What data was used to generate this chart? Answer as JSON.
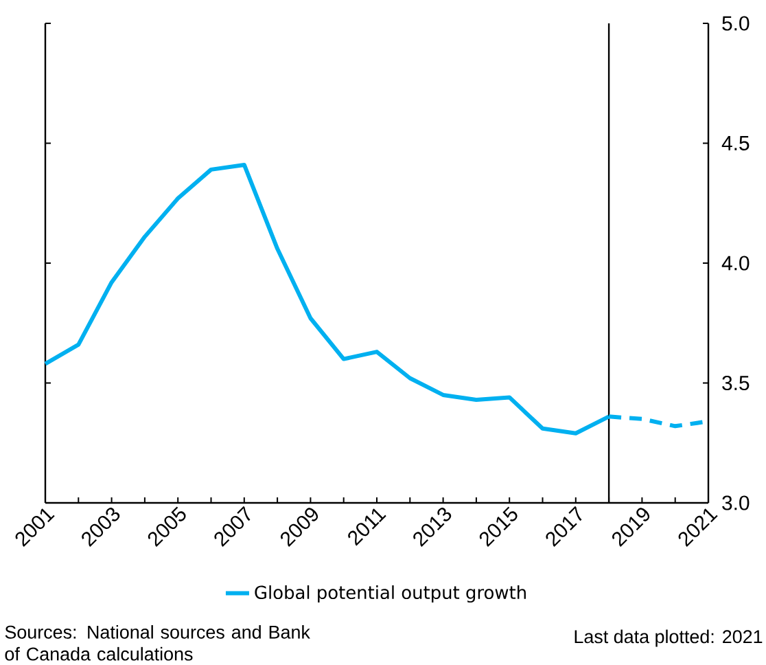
{
  "chart_data": {
    "type": "line",
    "series": [
      {
        "name": "Global potential output growth",
        "color": "#00b0f0",
        "line_style": "solid",
        "x": [
          2001,
          2002,
          2003,
          2004,
          2005,
          2006,
          2007,
          2008,
          2009,
          2010,
          2011,
          2012,
          2013,
          2014,
          2015,
          2016,
          2017,
          2018
        ],
        "values": [
          3.58,
          3.66,
          3.92,
          4.11,
          4.27,
          4.39,
          4.41,
          4.06,
          3.77,
          3.6,
          3.63,
          3.52,
          3.45,
          3.43,
          3.44,
          3.31,
          3.29,
          3.36
        ]
      },
      {
        "color": "#00b0f0",
        "line_style": "dashed",
        "x": [
          2018,
          2019,
          2020,
          2021
        ],
        "values": [
          3.36,
          3.35,
          3.32,
          3.34
        ]
      }
    ],
    "xlim": [
      2001,
      2021
    ],
    "xticks": [
      2001,
      {
        "value": 2002,
        "label": null
      },
      2003,
      {
        "value": 2004,
        "label": null
      },
      2005,
      {
        "value": 2006,
        "label": null
      },
      2007,
      {
        "value": 2008,
        "label": null
      },
      2009,
      {
        "value": 2010,
        "label": null
      },
      2011,
      {
        "value": 2012,
        "label": null
      },
      2013,
      {
        "value": 2014,
        "label": null
      },
      2015,
      {
        "value": 2016,
        "label": null
      },
      2017,
      {
        "value": 2018,
        "label": null
      },
      2019,
      {
        "value": 2020,
        "label": null
      },
      2021
    ],
    "ylim": [
      3.0,
      5.0
    ],
    "yticks": [
      {
        "value": 3.0,
        "label": "3.0"
      },
      {
        "value": 3.5,
        "label": "3.5"
      },
      {
        "value": 4.0,
        "label": "4.0"
      },
      {
        "value": 4.5,
        "label": "4.5"
      },
      {
        "value": 5.0,
        "label": "5.0"
      }
    ],
    "ref_lines": [
      {
        "axis": "x",
        "value": 2018,
        "color": "#000000"
      }
    ],
    "legend": "bottom",
    "marker": "none",
    "annotations": [
      "Sources: National sources and Bank of Canada calculations",
      "Last data plotted: 2021"
    ]
  }
}
